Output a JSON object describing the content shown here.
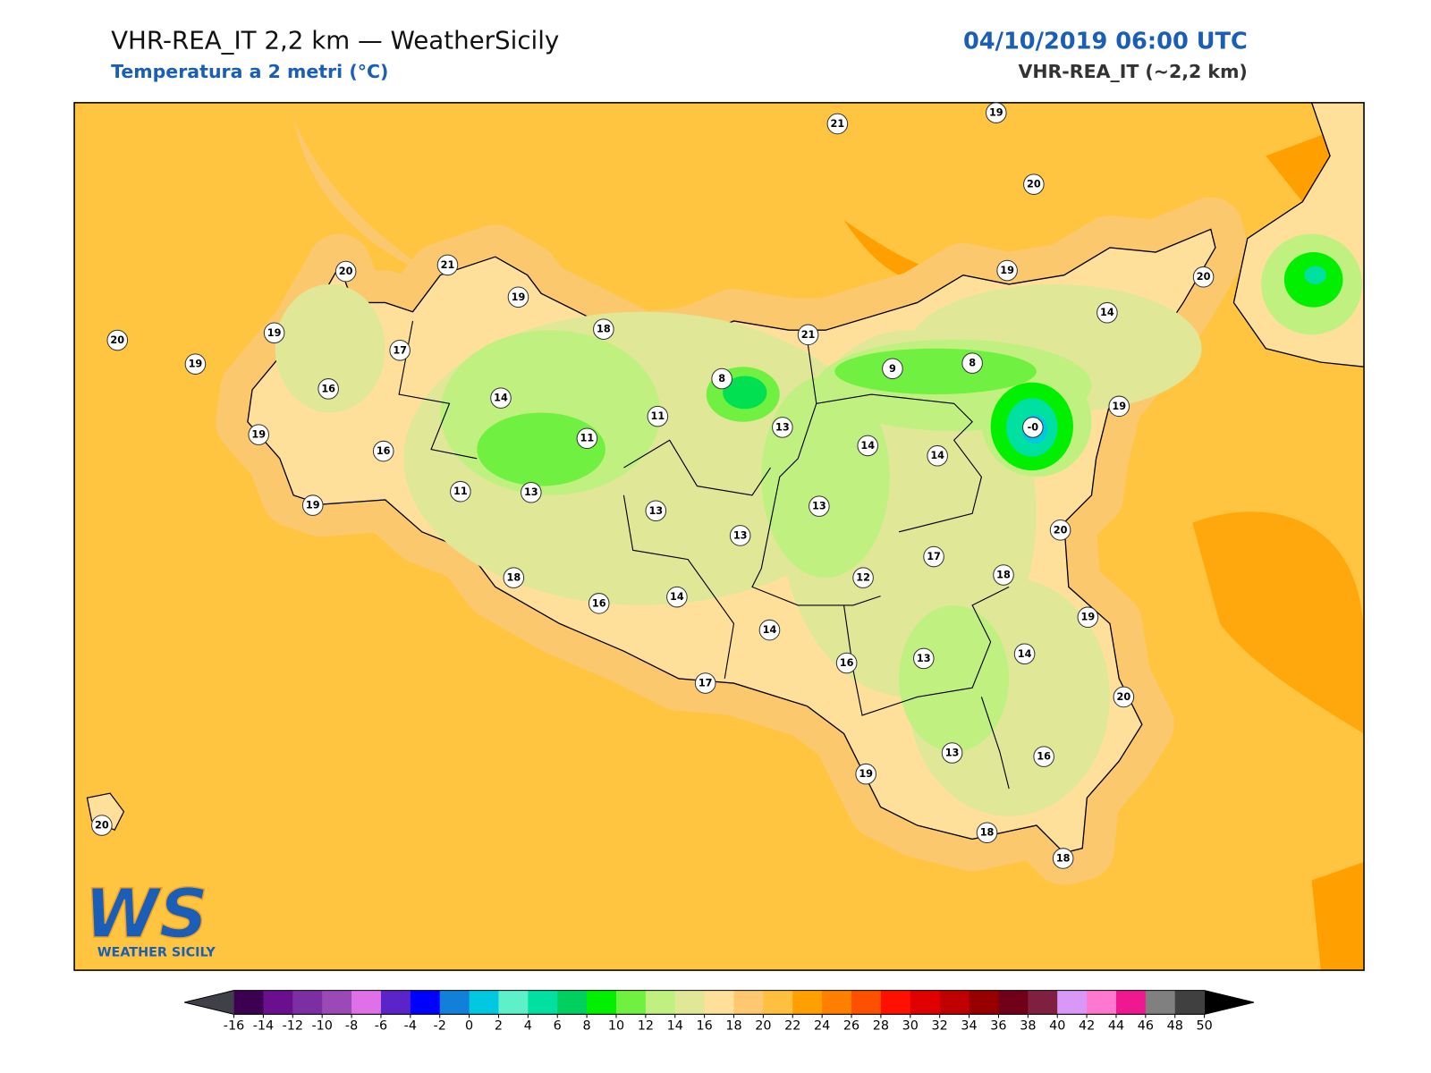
{
  "header": {
    "title": "VHR-REA_IT 2,2 km — WeatherSicily",
    "subtitle": "Temperatura a 2 metri (°C)",
    "datetime": "04/10/2019 06:00 UTC",
    "model": "VHR-REA_IT (~2,2 km)"
  },
  "stations": [
    {
      "label": "21"
    },
    {
      "label": "19"
    },
    {
      "label": "20"
    },
    {
      "label": "20"
    },
    {
      "label": "21"
    },
    {
      "label": "19"
    },
    {
      "label": "18"
    },
    {
      "label": "21"
    },
    {
      "label": "19"
    },
    {
      "label": "20"
    },
    {
      "label": "14"
    },
    {
      "label": "20"
    },
    {
      "label": "19"
    },
    {
      "label": "19"
    },
    {
      "label": "17"
    },
    {
      "label": "16"
    },
    {
      "label": "14"
    },
    {
      "label": "8"
    },
    {
      "label": "9"
    },
    {
      "label": "8"
    },
    {
      "label": "19"
    },
    {
      "label": "-0"
    },
    {
      "label": "11"
    },
    {
      "label": "11"
    },
    {
      "label": "13"
    },
    {
      "label": "14"
    },
    {
      "label": "14"
    },
    {
      "label": "19"
    },
    {
      "label": "16"
    },
    {
      "label": "11"
    },
    {
      "label": "13"
    },
    {
      "label": "13"
    },
    {
      "label": "13"
    },
    {
      "label": "19"
    },
    {
      "label": "13"
    },
    {
      "label": "20"
    },
    {
      "label": "17"
    },
    {
      "label": "18"
    },
    {
      "label": "12"
    },
    {
      "label": "18"
    },
    {
      "label": "16"
    },
    {
      "label": "14"
    },
    {
      "label": "19"
    },
    {
      "label": "14"
    },
    {
      "label": "16"
    },
    {
      "label": "13"
    },
    {
      "label": "14"
    },
    {
      "label": "17"
    },
    {
      "label": "20"
    },
    {
      "label": "19"
    },
    {
      "label": "13"
    },
    {
      "label": "16"
    },
    {
      "label": "18"
    },
    {
      "label": "18"
    },
    {
      "label": "20"
    }
  ],
  "colorbar": {
    "ticks": [
      -16,
      -14,
      -12,
      -10,
      -8,
      -6,
      -4,
      -2,
      0,
      2,
      4,
      6,
      8,
      10,
      12,
      14,
      16,
      18,
      20,
      22,
      24,
      26,
      28,
      30,
      32,
      34,
      36,
      38,
      40,
      42,
      44,
      46,
      48,
      50
    ],
    "colors": [
      "#3b0050",
      "#6a0f8e",
      "#7b2fa3",
      "#9a49b6",
      "#e070e8",
      "#5a24c8",
      "#0000ff",
      "#1280d8",
      "#00c8e0",
      "#5ef0c8",
      "#00e0a0",
      "#00d060",
      "#00f000",
      "#70f040",
      "#c0f080",
      "#e0e898",
      "#ffe09a",
      "#fdc870",
      "#ffc040",
      "#ffa000",
      "#ff8000",
      "#ff5000",
      "#ff1000",
      "#e00000",
      "#c00000",
      "#980000",
      "#700018",
      "#802040",
      "#d898f8",
      "#ff78d0",
      "#f01890",
      "#808080",
      "#404040"
    ],
    "under_color": "#404048",
    "over_color": "#000000"
  },
  "logo": {
    "mark": "WS",
    "text": "WEATHER SICILY"
  }
}
